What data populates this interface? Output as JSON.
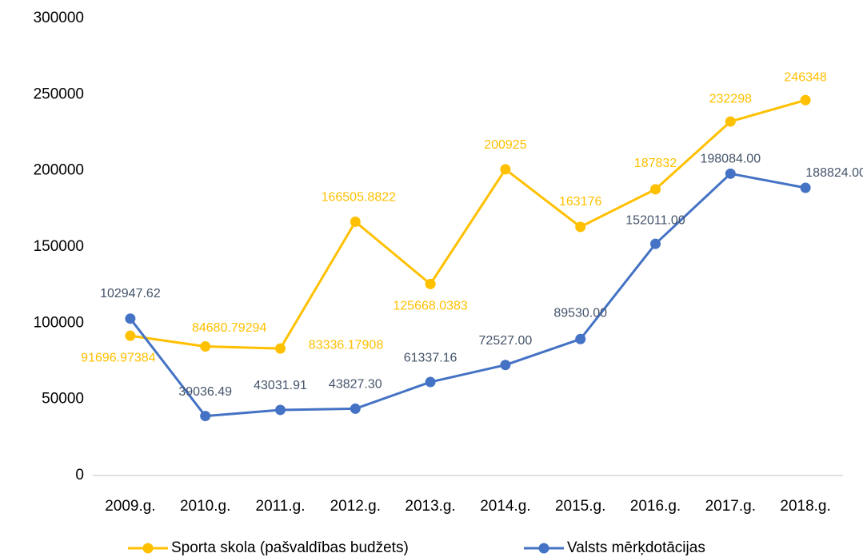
{
  "chart_data": {
    "type": "line",
    "categories": [
      "2009.g.",
      "2010.g.",
      "2011.g.",
      "2012.g.",
      "2013.g.",
      "2014.g.",
      "2015.g.",
      "2016.g.",
      "2017.g.",
      "2018.g."
    ],
    "series": [
      {
        "name": "Sporta skola (pašvaldības budžets)",
        "color": "#FFC000",
        "values": [
          91696.97384,
          84680.79294,
          83336.17908,
          166505.8822,
          125668.0383,
          200925,
          163176,
          187832,
          232298,
          246348
        ]
      },
      {
        "name": "Valsts mērķdotācijas",
        "color": "#4472C4",
        "values": [
          102947.62,
          39036.49,
          43031.91,
          43827.3,
          61337.16,
          72527,
          89530,
          152011,
          198084,
          188824
        ],
        "value_labels": [
          "102947.62",
          "39036.49",
          "43031.91",
          "43827.30",
          "61337.16",
          "72527.00",
          "89530.00",
          "152011.00",
          "198084.00",
          "188824.00"
        ]
      }
    ],
    "ylim": [
      0,
      300000
    ],
    "yticks": [
      0,
      50000,
      100000,
      150000,
      200000,
      250000,
      300000
    ],
    "grid": false,
    "legend": "bottom"
  }
}
